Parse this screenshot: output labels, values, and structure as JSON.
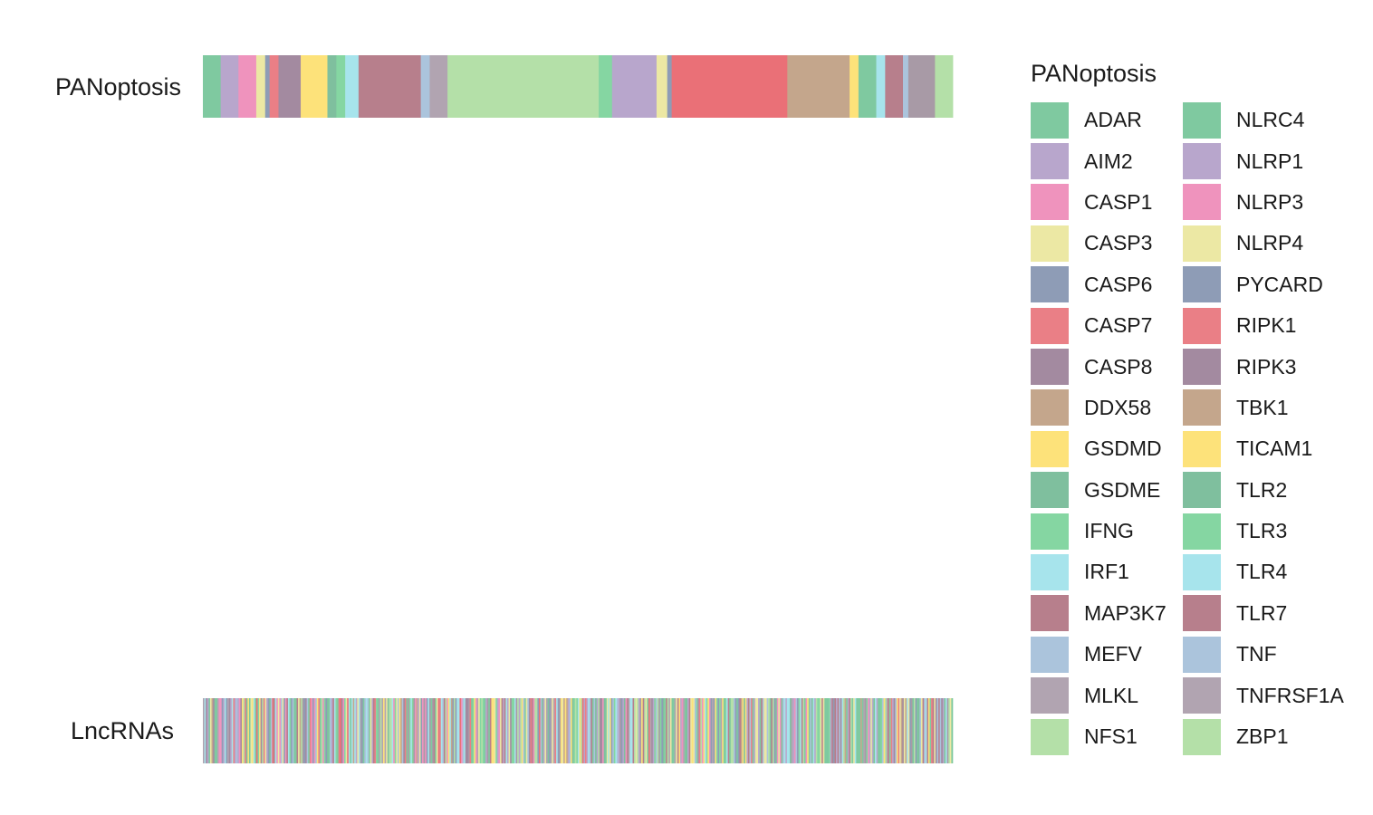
{
  "chart_data": {
    "type": "sankey",
    "top_axis_label": "PANoptosis",
    "bottom_axis_label": "LncRNAs",
    "legend_title": "PANoptosis",
    "categories": [
      {
        "name": "ADAR",
        "color": "#7fc9a0",
        "weight": 2
      },
      {
        "name": "AIM2",
        "color": "#b8a6cc",
        "weight": 2
      },
      {
        "name": "CASP1",
        "color": "#ef93bd",
        "weight": 2
      },
      {
        "name": "CASP3",
        "color": "#ece8a4",
        "weight": 1
      },
      {
        "name": "CASP6",
        "color": "#8e9cb6",
        "weight": 0.5
      },
      {
        "name": "CASP7",
        "color": "#ea7f86",
        "weight": 1
      },
      {
        "name": "CASP8",
        "color": "#a38aa0",
        "weight": 2.5
      },
      {
        "name": "GSDMD",
        "color": "#fde27a",
        "weight": 3
      },
      {
        "name": "GSDME",
        "color": "#7fbf9e",
        "weight": 1
      },
      {
        "name": "IFNG",
        "color": "#85d6a2",
        "weight": 1
      },
      {
        "name": "IRF1",
        "color": "#a7e4ec",
        "weight": 1.5
      },
      {
        "name": "MAP3K7",
        "color": "#b77f8c",
        "weight": 7
      },
      {
        "name": "MEFV",
        "color": "#abc4dc",
        "weight": 1
      },
      {
        "name": "MLKL",
        "color": "#b1a4b1",
        "weight": 2
      },
      {
        "name": "NFS1",
        "color": "#b4e0a8",
        "weight": 17
      },
      {
        "name": "TLR3",
        "color": "#85d6a2",
        "weight": 1.5
      },
      {
        "name": "AIM2",
        "color": "#b8a6cc",
        "weight": 5
      },
      {
        "name": "CASP3",
        "color": "#ece8a4",
        "weight": 1.2
      },
      {
        "name": "CASP6",
        "color": "#8e9cb6",
        "weight": 0.5
      },
      {
        "name": "RIPK1",
        "color": "#ea7077",
        "weight": 13
      },
      {
        "name": "TBK1",
        "color": "#c4a68c",
        "weight": 7
      },
      {
        "name": "TICAM1",
        "color": "#fde27a",
        "weight": 1
      },
      {
        "name": "TLR2",
        "color": "#7fc9a0",
        "weight": 2
      },
      {
        "name": "TLR4",
        "color": "#a7e4ec",
        "weight": 1
      },
      {
        "name": "TLR7",
        "color": "#b77f8c",
        "weight": 2
      },
      {
        "name": "TNF",
        "color": "#abc4dc",
        "weight": 0.6
      },
      {
        "name": "TNFRSF1A",
        "color": "#a89aa6",
        "weight": 3
      },
      {
        "name": "ZBP1",
        "color": "#b4e0a8",
        "weight": 2
      }
    ],
    "legend": [
      {
        "name": "ADAR",
        "color": "#7fc9a0"
      },
      {
        "name": "NLRC4",
        "color": "#7fc9a0"
      },
      {
        "name": "AIM2",
        "color": "#b8a6cc"
      },
      {
        "name": "NLRP1",
        "color": "#b8a6cc"
      },
      {
        "name": "CASP1",
        "color": "#ef93bd"
      },
      {
        "name": "NLRP3",
        "color": "#ef93bd"
      },
      {
        "name": "CASP3",
        "color": "#ece8a4"
      },
      {
        "name": "NLRP4",
        "color": "#ece8a4"
      },
      {
        "name": "CASP6",
        "color": "#8e9cb6"
      },
      {
        "name": "PYCARD",
        "color": "#8e9cb6"
      },
      {
        "name": "CASP7",
        "color": "#ea7f86"
      },
      {
        "name": "RIPK1",
        "color": "#ea7f86"
      },
      {
        "name": "CASP8",
        "color": "#a38aa0"
      },
      {
        "name": "RIPK3",
        "color": "#a38aa0"
      },
      {
        "name": "DDX58",
        "color": "#c4a68c"
      },
      {
        "name": "TBK1",
        "color": "#c4a68c"
      },
      {
        "name": "GSDMD",
        "color": "#fde27a"
      },
      {
        "name": "TICAM1",
        "color": "#fde27a"
      },
      {
        "name": "GSDME",
        "color": "#7fbf9e"
      },
      {
        "name": "TLR2",
        "color": "#7fbf9e"
      },
      {
        "name": "IFNG",
        "color": "#85d6a2"
      },
      {
        "name": "TLR3",
        "color": "#85d6a2"
      },
      {
        "name": "IRF1",
        "color": "#a7e4ec"
      },
      {
        "name": "TLR4",
        "color": "#a7e4ec"
      },
      {
        "name": "MAP3K7",
        "color": "#b77f8c"
      },
      {
        "name": "TLR7",
        "color": "#b77f8c"
      },
      {
        "name": "MEFV",
        "color": "#abc4dc"
      },
      {
        "name": "TNF",
        "color": "#abc4dc"
      },
      {
        "name": "MLKL",
        "color": "#b1a4b1"
      },
      {
        "name": "TNFRSF1A",
        "color": "#b1a4b1"
      },
      {
        "name": "NFS1",
        "color": "#b4e0a8"
      },
      {
        "name": "ZBP1",
        "color": "#b4e0a8"
      }
    ]
  }
}
